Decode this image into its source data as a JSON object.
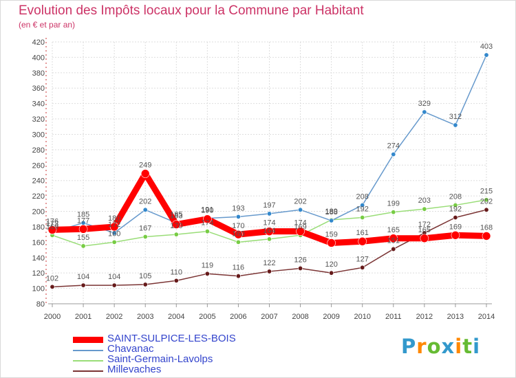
{
  "title": "Evolution des Impôts locaux pour la Commune par Habitant",
  "subtitle": "(en € et par an)",
  "logo": {
    "text": "Proxiti",
    "letters": [
      {
        "char": "P",
        "color": "#3399cc"
      },
      {
        "char": "r",
        "color": "#ff8800"
      },
      {
        "char": "o",
        "color": "#66bb33"
      },
      {
        "char": "x",
        "color": "#3399cc"
      },
      {
        "char": "i",
        "color": "#ff8800"
      },
      {
        "char": "t",
        "color": "#66bb33"
      },
      {
        "char": "i",
        "color": "#3399cc"
      }
    ]
  },
  "chart_data": {
    "type": "line",
    "x": [
      "2000",
      "2001",
      "2002",
      "2003",
      "2004",
      "2005",
      "2006",
      "2007",
      "2008",
      "2009",
      "2010",
      "2011",
      "2012",
      "2013",
      "2014"
    ],
    "ylim": [
      80,
      420
    ],
    "yticks": [
      80,
      100,
      120,
      140,
      160,
      180,
      200,
      220,
      240,
      260,
      280,
      300,
      320,
      340,
      360,
      380,
      400,
      420
    ],
    "grid": true,
    "legend_position": "bottom-left",
    "series": [
      {
        "name": "SAINT-SULPICE-LES-BOIS",
        "color": "#ff0000",
        "width": 9,
        "values": [
          176,
          177,
          180,
          249,
          183,
          190,
          170,
          174,
          174,
          159,
          161,
          165,
          165,
          169,
          168
        ],
        "labels": [
          "176",
          "177",
          "180",
          "249",
          "183",
          "190",
          "170",
          "174",
          "174",
          "159",
          "161",
          "165",
          "165",
          "169",
          "168"
        ]
      },
      {
        "name": "Chavanac",
        "color": "#6699cc",
        "width": 1.5,
        "values": [
          173,
          185,
          172,
          202,
          185,
          191,
          193,
          197,
          202,
          188,
          208,
          274,
          329,
          312,
          403
        ],
        "labels": [
          "173",
          "185",
          "172",
          "202",
          "185",
          "191",
          "193",
          "197",
          "202",
          "188",
          "208",
          "274",
          "329",
          "312",
          "403"
        ]
      },
      {
        "name": "Saint-Germain-Lavolps",
        "color": "#99dd77",
        "width": 1.5,
        "values": [
          169,
          155,
          160,
          167,
          170,
          174,
          160,
          164,
          169,
          189,
          192,
          199,
          203,
          208,
          215
        ],
        "labels": [
          "169",
          "155",
          "160",
          "167",
          "170",
          "174",
          "160",
          "164",
          "169",
          "189",
          "192",
          "199",
          "203",
          "208",
          "215"
        ]
      },
      {
        "name": "Millevaches",
        "color": "#7a3333",
        "width": 1.5,
        "values": [
          102,
          104,
          104,
          105,
          110,
          119,
          116,
          122,
          126,
          120,
          127,
          151,
          172,
          192,
          202
        ],
        "labels": [
          "102",
          "104",
          "104",
          "105",
          "110",
          "119",
          "116",
          "122",
          "126",
          "120",
          "127",
          "151",
          "172",
          "192",
          "202"
        ]
      }
    ]
  }
}
